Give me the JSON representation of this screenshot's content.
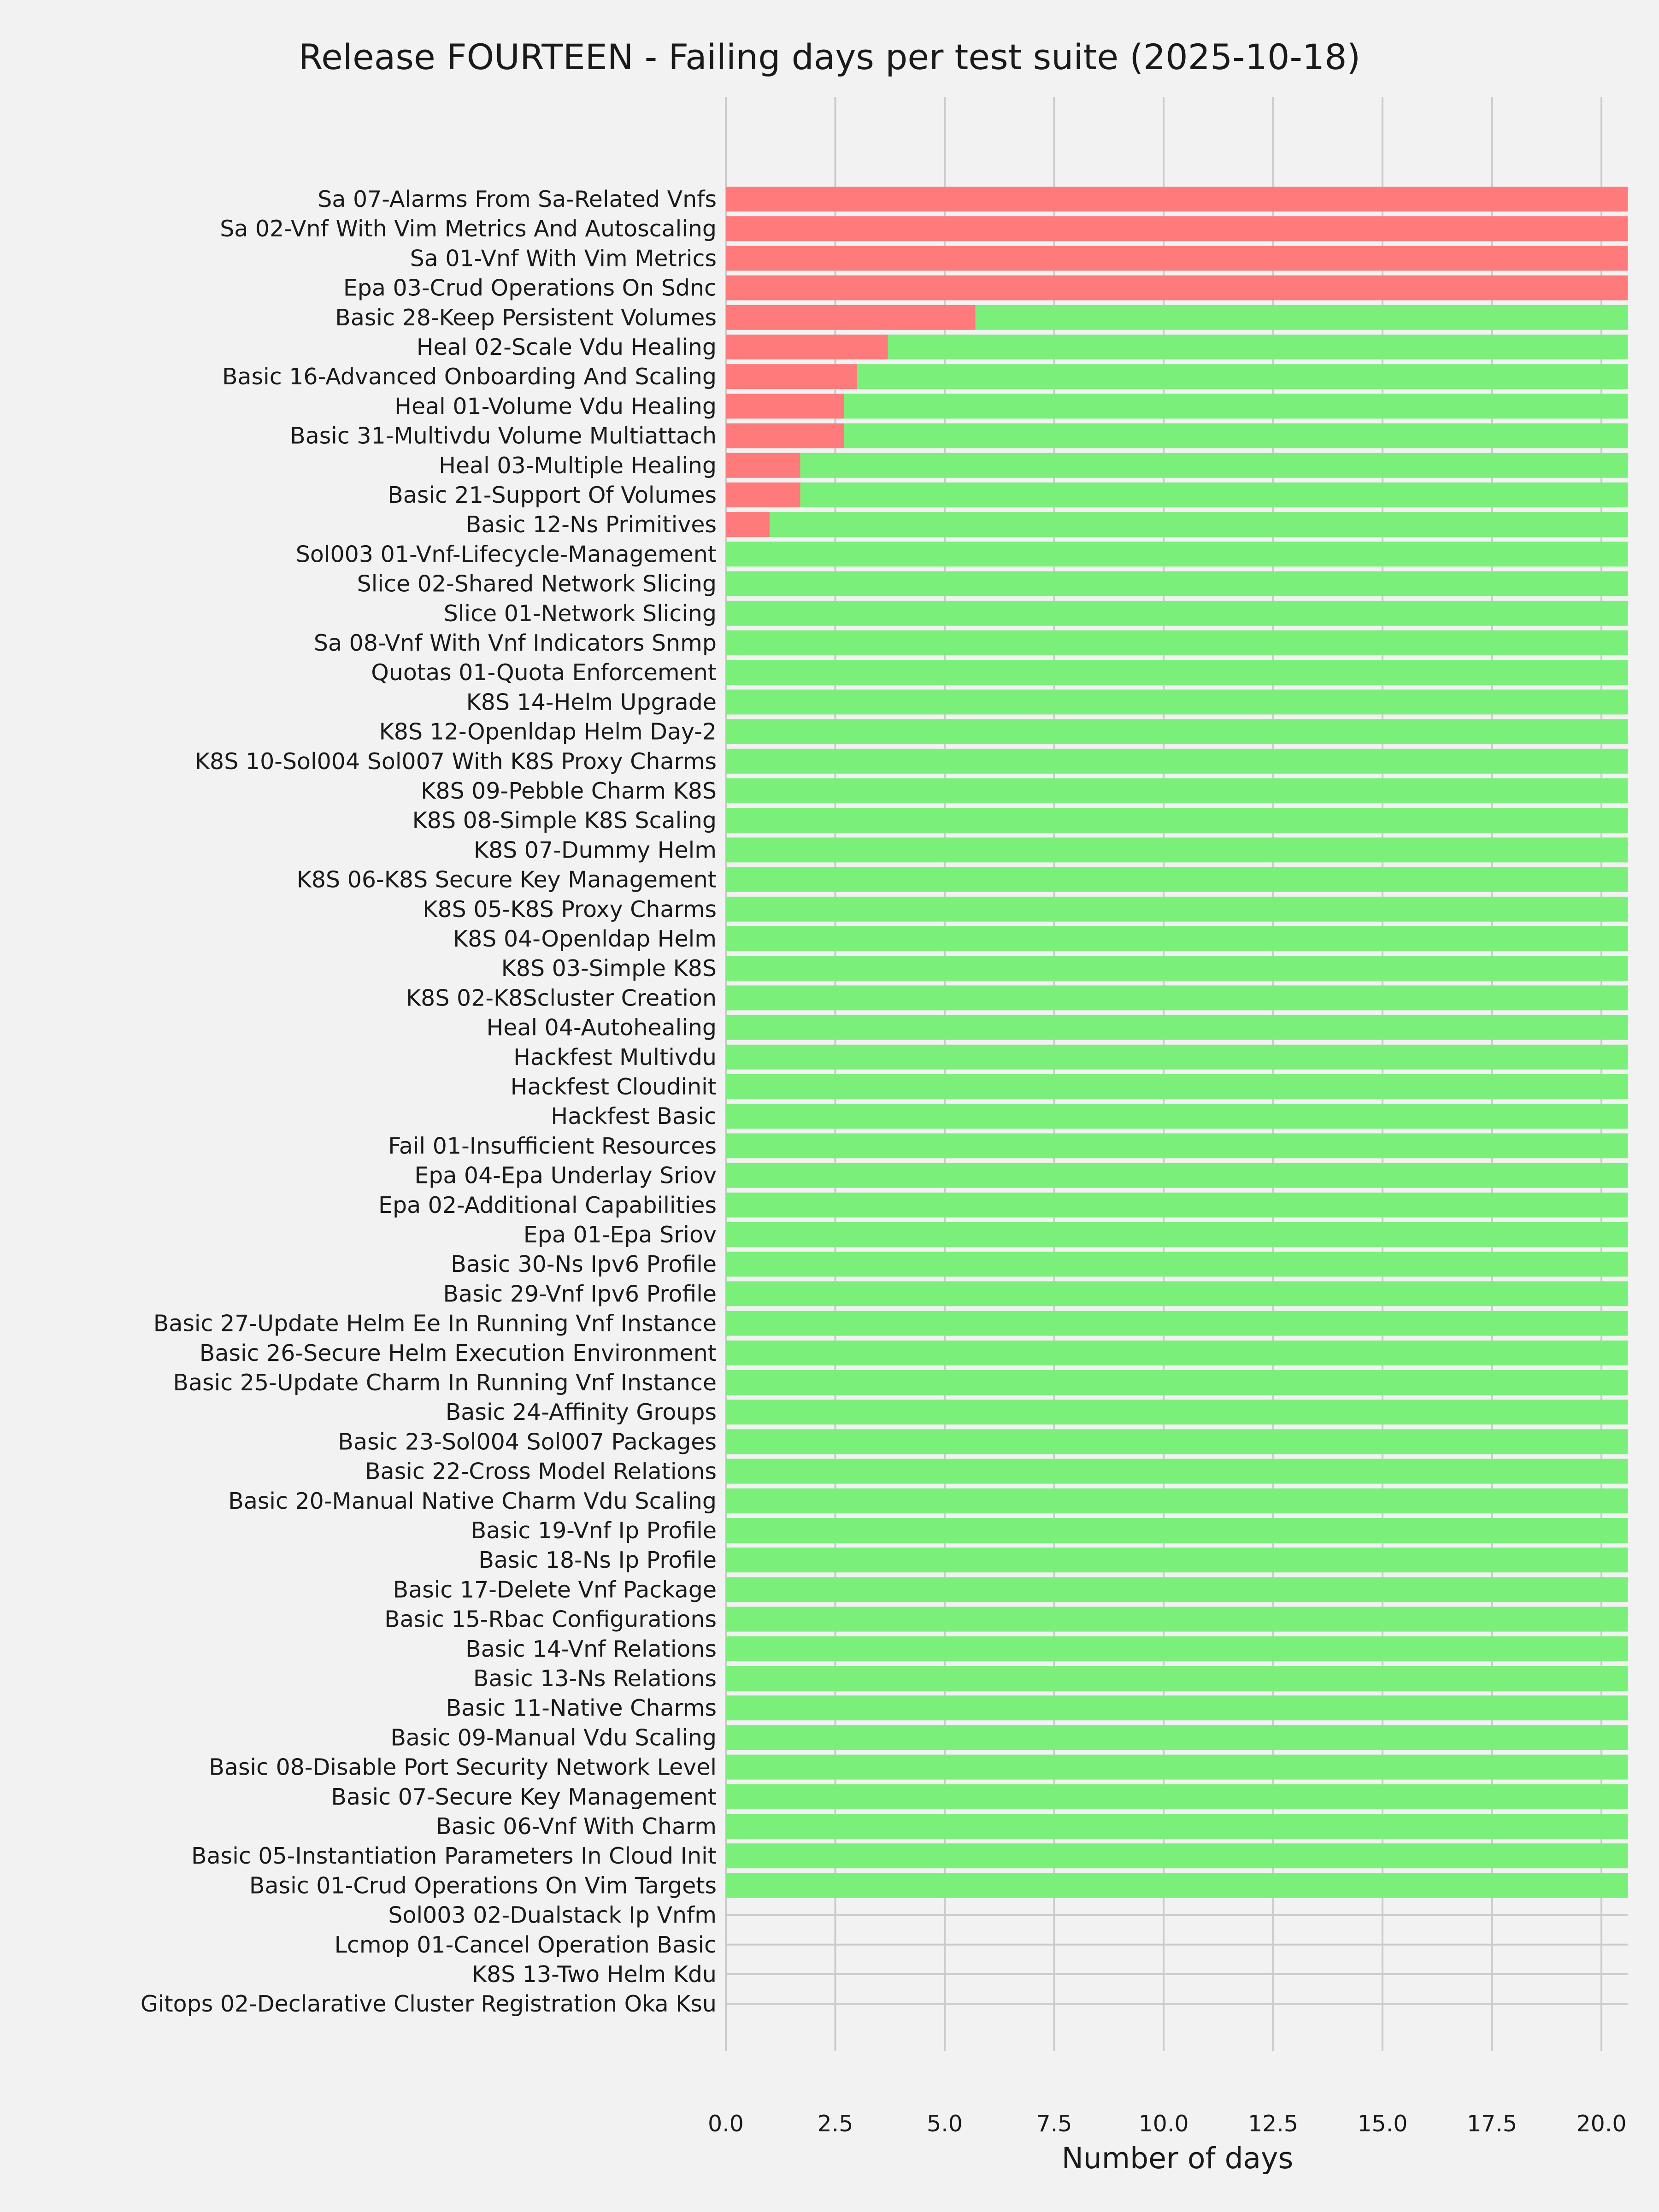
{
  "chart_data": {
    "type": "bar",
    "orientation": "horizontal",
    "stacked": true,
    "title": "Release FOURTEEN - Failing days per test suite (2025-10-18)",
    "xlabel": "Number of days",
    "ylabel": "",
    "xlim": [
      0,
      20.6
    ],
    "xticks": [
      "0.0",
      "2.5",
      "5.0",
      "7.5",
      "10.0",
      "12.5",
      "15.0",
      "17.5",
      "20.0"
    ],
    "grid": true,
    "legend": "none",
    "colors": {
      "failing": "#ff7a7a",
      "passing": "#7af07a",
      "background": "#f2f2f2",
      "grid": "#cbcbcb"
    },
    "categories": [
      "Sa 07-Alarms From Sa-Related Vnfs",
      "Sa 02-Vnf With Vim Metrics And Autoscaling",
      "Sa 01-Vnf With Vim Metrics",
      "Epa 03-Crud Operations On Sdnc",
      "Basic 28-Keep Persistent Volumes",
      "Heal 02-Scale Vdu Healing",
      "Basic 16-Advanced Onboarding And Scaling",
      "Heal 01-Volume Vdu Healing",
      "Basic 31-Multivdu Volume Multiattach",
      "Heal 03-Multiple Healing",
      "Basic 21-Support Of Volumes",
      "Basic 12-Ns Primitives",
      "Sol003 01-Vnf-Lifecycle-Management",
      "Slice 02-Shared Network Slicing",
      "Slice 01-Network Slicing",
      "Sa 08-Vnf With Vnf Indicators Snmp",
      "Quotas 01-Quota Enforcement",
      "K8S 14-Helm Upgrade",
      "K8S 12-Openldap Helm Day-2",
      "K8S 10-Sol004 Sol007 With K8S Proxy Charms",
      "K8S 09-Pebble Charm K8S",
      "K8S 08-Simple K8S Scaling",
      "K8S 07-Dummy Helm",
      "K8S 06-K8S Secure Key Management",
      "K8S 05-K8S Proxy Charms",
      "K8S 04-Openldap Helm",
      "K8S 03-Simple K8S",
      "K8S 02-K8Scluster Creation",
      "Heal 04-Autohealing",
      "Hackfest Multivdu",
      "Hackfest Cloudinit",
      "Hackfest Basic",
      "Fail 01-Insufficient Resources",
      "Epa 04-Epa Underlay Sriov",
      "Epa 02-Additional Capabilities",
      "Epa 01-Epa Sriov",
      "Basic 30-Ns Ipv6 Profile",
      "Basic 29-Vnf Ipv6 Profile",
      "Basic 27-Update Helm Ee In Running Vnf Instance",
      "Basic 26-Secure Helm Execution Environment",
      "Basic 25-Update Charm In Running Vnf Instance",
      "Basic 24-Affinity Groups",
      "Basic 23-Sol004 Sol007 Packages",
      "Basic 22-Cross Model Relations",
      "Basic 20-Manual Native Charm Vdu Scaling",
      "Basic 19-Vnf Ip Profile",
      "Basic 18-Ns Ip Profile",
      "Basic 17-Delete Vnf Package",
      "Basic 15-Rbac Configurations",
      "Basic 14-Vnf Relations",
      "Basic 13-Ns Relations",
      "Basic 11-Native Charms",
      "Basic 09-Manual Vdu Scaling",
      "Basic 08-Disable Port Security Network Level",
      "Basic 07-Secure Key Management",
      "Basic 06-Vnf With Charm",
      "Basic 05-Instantiation Parameters In Cloud Init",
      "Basic 01-Crud Operations On Vim Targets",
      "Sol003 02-Dualstack Ip Vnfm",
      "Lcmop 01-Cancel Operation Basic",
      "K8S 13-Two Helm Kdu",
      "Gitops 02-Declarative Cluster Registration Oka Ksu"
    ],
    "series": [
      {
        "color": "#ff7a7a",
        "values": [
          20.6,
          20.6,
          20.6,
          20.6,
          5.7,
          3.7,
          3.0,
          2.7,
          2.7,
          1.7,
          1.7,
          1.0,
          0,
          0,
          0,
          0,
          0,
          0,
          0,
          0,
          0,
          0,
          0,
          0,
          0,
          0,
          0,
          0,
          0,
          0,
          0,
          0,
          0,
          0,
          0,
          0,
          0,
          0,
          0,
          0,
          0,
          0,
          0,
          0,
          0,
          0,
          0,
          0,
          0,
          0,
          0,
          0,
          0,
          0,
          0,
          0,
          0,
          0,
          0,
          0,
          0,
          0
        ]
      },
      {
        "color": "#7af07a",
        "values": [
          0,
          0,
          0,
          0,
          14.9,
          16.9,
          17.6,
          17.9,
          17.9,
          18.9,
          18.9,
          19.6,
          20.6,
          20.6,
          20.6,
          20.6,
          20.6,
          20.6,
          20.6,
          20.6,
          20.6,
          20.6,
          20.6,
          20.6,
          20.6,
          20.6,
          20.6,
          20.6,
          20.6,
          20.6,
          20.6,
          20.6,
          20.6,
          20.6,
          20.6,
          20.6,
          20.6,
          20.6,
          20.6,
          20.6,
          20.6,
          20.6,
          20.6,
          20.6,
          20.6,
          20.6,
          20.6,
          20.6,
          20.6,
          20.6,
          20.6,
          20.6,
          20.6,
          20.6,
          20.6,
          20.6,
          20.6,
          20.6,
          0,
          0,
          0,
          0
        ]
      }
    ]
  }
}
